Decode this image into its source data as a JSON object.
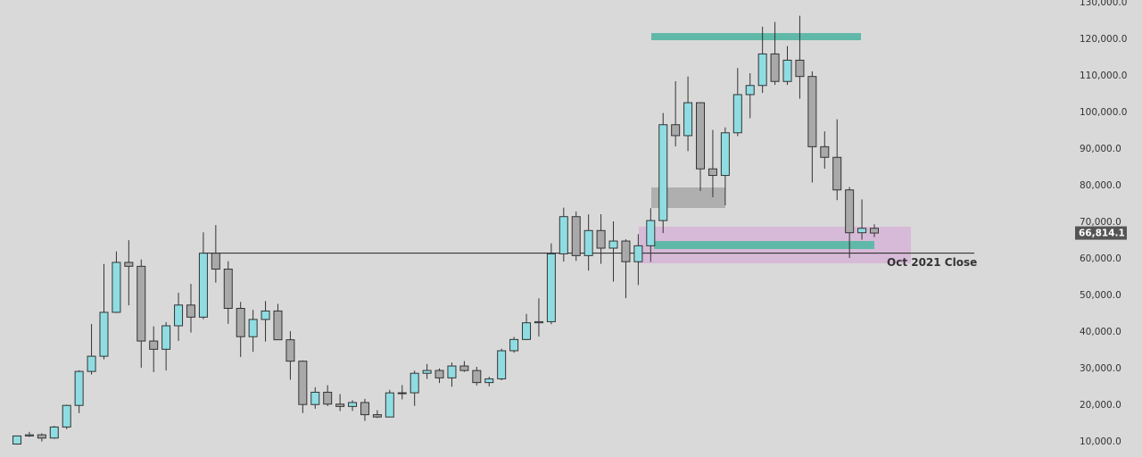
{
  "chart_data": {
    "type": "candlestick",
    "up_color": "#8fdde2",
    "down_color": "#a9a9a9",
    "open": [
      9140,
      11350,
      11660,
      10780,
      13800,
      19700,
      28990,
      33140,
      45140,
      58790,
      57720,
      37300,
      35040,
      41460,
      47130,
      43820,
      61300,
      56950,
      46220,
      38480,
      43190,
      45510,
      37640,
      31790,
      19940,
      23300,
      20050,
      19420,
      20490,
      17160,
      16540,
      23130,
      23150,
      28480,
      29250,
      27220,
      30470,
      29230,
      25940,
      26960,
      34640,
      37720,
      42280,
      42580,
      61130,
      71290,
      60640,
      67490,
      62680,
      64620,
      58970,
      63330,
      70220,
      96410,
      93430,
      102430,
      84350,
      82550,
      94210,
      104640,
      107140,
      115760,
      108240,
      114050,
      109600,
      90400,
      87500,
      78600,
      66900,
      68100
    ],
    "high": [
      11440,
      12470,
      12080,
      14100,
      19900,
      29300,
      41950,
      58350,
      61790,
      64850,
      59590,
      41330,
      42450,
      50500,
      52920,
      67000,
      69000,
      59100,
      47990,
      45800,
      48240,
      47450,
      40000,
      31990,
      24670,
      25210,
      22800,
      21100,
      21480,
      18390,
      23960,
      25250,
      29180,
      31000,
      29820,
      31430,
      31820,
      30240,
      27500,
      35200,
      38420,
      44700,
      48960,
      64000,
      73750,
      72700,
      71900,
      71950,
      70000,
      65100,
      66500,
      73600,
      99600,
      108300,
      109600,
      102500,
      95000,
      95700,
      111900,
      110500,
      123200,
      124500,
      117900,
      126200,
      111000,
      94600,
      97900,
      79400,
      76000,
      69200
    ],
    "low": [
      8990,
      11080,
      9850,
      10560,
      13200,
      17600,
      28150,
      32300,
      44950,
      47050,
      30000,
      28800,
      29280,
      37330,
      39600,
      43280,
      53250,
      42000,
      32930,
      34320,
      37150,
      37690,
      26700,
      17620,
      18780,
      19520,
      18150,
      18200,
      15480,
      16260,
      16500,
      21350,
      19550,
      26940,
      25810,
      24800,
      28860,
      25170,
      24900,
      26560,
      34100,
      37620,
      38500,
      41880,
      59000,
      59200,
      56550,
      58400,
      53550,
      49000,
      52600,
      58900,
      66800,
      90500,
      89200,
      78300,
      76600,
      74400,
      93300,
      98200,
      105100,
      107300,
      107300,
      103500,
      80600,
      84400,
      75800,
      60000,
      65000,
      65700
    ],
    "close": [
      11350,
      11660,
      10780,
      13800,
      19700,
      28990,
      33140,
      45140,
      58790,
      57720,
      37300,
      35040,
      41460,
      47130,
      43820,
      61300,
      56950,
      46220,
      38480,
      43190,
      45510,
      37640,
      31790,
      19940,
      23300,
      20050,
      19420,
      20490,
      17160,
      16540,
      23130,
      23150,
      28480,
      29250,
      27220,
      30470,
      29230,
      25940,
      26960,
      34640,
      37720,
      42280,
      42580,
      61130,
      71290,
      60640,
      67490,
      62680,
      64620,
      58970,
      63330,
      70220,
      96410,
      93430,
      102430,
      84350,
      82550,
      94210,
      104640,
      107140,
      115760,
      108240,
      114050,
      109600,
      90400,
      87500,
      78600,
      66900,
      68100,
      66814.1
    ],
    "ylim": [
      5600,
      130500
    ],
    "yticks": [
      {
        "value": 10000,
        "label": "10,000.0"
      },
      {
        "value": 20000,
        "label": "20,000.0"
      },
      {
        "value": 30000,
        "label": "30,000.0"
      },
      {
        "value": 40000,
        "label": "40,000.0"
      },
      {
        "value": 50000,
        "label": "50,000.0"
      },
      {
        "value": 60000,
        "label": "60,000.0"
      },
      {
        "value": 70000,
        "label": "70,000.0"
      },
      {
        "value": 80000,
        "label": "80,000.0"
      },
      {
        "value": 90000,
        "label": "90,000.0"
      },
      {
        "value": 100000,
        "label": "100,000.0"
      },
      {
        "value": 110000,
        "label": "110,000.0"
      },
      {
        "value": 120000,
        "label": "120,000.0"
      },
      {
        "value": 130000,
        "label": "130,000.0"
      }
    ],
    "last_price": {
      "value": 66814.1,
      "label": "66,814.1"
    },
    "reference_line": {
      "value": 61300,
      "label": "Oct 2021 Close",
      "color": "#8a6a1a"
    },
    "zones": [
      {
        "ylim": [
          58540,
          68540
        ],
        "color": "rgba(214,160,214,0.55)"
      },
      {
        "ylim": [
          73660,
          79270
        ],
        "color": "rgba(160,160,160,0.75)"
      },
      {
        "ylim": [
          119510,
          121460
        ],
        "color": "#5fb8a8"
      },
      {
        "ylim": [
          62440,
          64630
        ],
        "color": "#5fb8a8"
      }
    ]
  }
}
